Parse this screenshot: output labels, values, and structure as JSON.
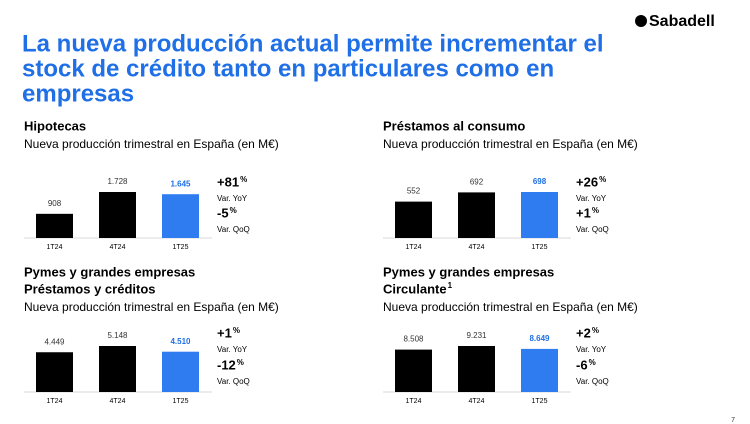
{
  "header": {
    "title": [
      "La nueva producción actual permite incrementar el",
      "stock de crédito tanto en particulares como en",
      "empresas"
    ],
    "logo": "Sabadell"
  },
  "page_number": "7",
  "chart_data": [
    {
      "type": "bar",
      "title": [
        "Hipotecas"
      ],
      "subtitle": "Nueva producción trimestral en España (en M€)",
      "categories": [
        "1T24",
        "4T24",
        "1T25"
      ],
      "values": [
        908,
        1728,
        1645
      ],
      "value_labels": [
        "908",
        "1.728",
        "1.645"
      ],
      "colors": [
        "#000000",
        "#000000",
        "#2f7bf0"
      ],
      "kpis": [
        {
          "value": "+81",
          "unit": "%",
          "label": "Var. YoY"
        },
        {
          "value": "-5",
          "unit": "%",
          "label": "Var. QoQ"
        }
      ]
    },
    {
      "type": "bar",
      "title": [
        "Préstamos al consumo"
      ],
      "subtitle": "Nueva producción trimestral en España (en M€)",
      "categories": [
        "1T24",
        "4T24",
        "1T25"
      ],
      "values": [
        552,
        692,
        698
      ],
      "value_labels": [
        "552",
        "692",
        "698"
      ],
      "colors": [
        "#000000",
        "#000000",
        "#2f7bf0"
      ],
      "kpis": [
        {
          "value": "+26",
          "unit": "%",
          "label": "Var. YoY"
        },
        {
          "value": "+1",
          "unit": "%",
          "label": "Var. QoQ"
        }
      ]
    },
    {
      "type": "bar",
      "title": [
        "Pymes y grandes empresas",
        "Préstamos y créditos"
      ],
      "subtitle": "Nueva producción trimestral en España (en M€)",
      "categories": [
        "1T24",
        "4T24",
        "1T25"
      ],
      "values": [
        4449,
        5148,
        4510
      ],
      "value_labels": [
        "4.449",
        "5.148",
        "4.510"
      ],
      "colors": [
        "#000000",
        "#000000",
        "#2f7bf0"
      ],
      "kpis": [
        {
          "value": "+1",
          "unit": "%",
          "label": "Var. YoY"
        },
        {
          "value": "-12",
          "unit": "%",
          "label": "Var. QoQ"
        }
      ]
    },
    {
      "type": "bar",
      "title": [
        "Pymes y grandes empresas",
        "Circulante"
      ],
      "title_note": "1",
      "subtitle": "Nueva producción trimestral en España (en M€)",
      "categories": [
        "1T24",
        "4T24",
        "1T25"
      ],
      "values": [
        8508,
        9231,
        8649
      ],
      "value_labels": [
        "8.508",
        "9.231",
        "8.649"
      ],
      "colors": [
        "#000000",
        "#000000",
        "#2f7bf0"
      ],
      "kpis": [
        {
          "value": "+2",
          "unit": "%",
          "label": "Var. YoY"
        },
        {
          "value": "-6",
          "unit": "%",
          "label": "Var. QoQ"
        }
      ]
    }
  ]
}
